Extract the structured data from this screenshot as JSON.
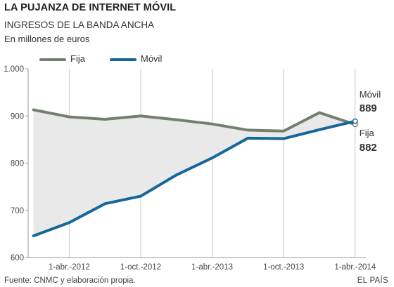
{
  "title": "LA PUJANZA DE INTERNET MÓVIL",
  "subtitle": "INGRESOS DE LA BANDA ANCHA",
  "units": "En millones de euros",
  "source": "Fuente: CNMC y elaboración propia.",
  "brand": "EL PAÍS",
  "colors": {
    "fija": "#74806f",
    "movil": "#15679b",
    "area": "#e9e9e9",
    "grid": "#c9c9c9",
    "axis": "#9a9a9a"
  },
  "chart_data": {
    "type": "line",
    "title": "LA PUJANZA DE INTERNET MÓVIL",
    "subtitle": "INGRESOS DE LA BANDA ANCHA",
    "ylabel": "En millones de euros",
    "xlabel": "",
    "ylim": [
      600,
      1000
    ],
    "yticks": [
      600,
      700,
      800,
      900,
      1000
    ],
    "ytick_labels": [
      "600",
      "700",
      "800",
      "900",
      "1.000"
    ],
    "xticks": [
      1,
      3,
      5,
      7,
      9
    ],
    "xtick_labels": [
      "1-abr.-2012",
      "1-oct.-2012",
      "1-abr.-2013",
      "1-oct.-2013",
      "1-abr.-2014"
    ],
    "xlim": [
      -0.15,
      9.3
    ],
    "x": [
      0,
      1,
      2,
      3,
      4,
      5,
      6,
      7,
      8,
      9
    ],
    "grid": "vertical",
    "legend_position": "top-left",
    "series": [
      {
        "name": "Fija",
        "color": "#74806f",
        "values": [
          913,
          898,
          893,
          900,
          892,
          883,
          870,
          868,
          907,
          882
        ]
      },
      {
        "name": "Móvil",
        "color": "#15679b",
        "values": [
          646,
          674,
          714,
          730,
          775,
          811,
          853,
          852,
          871,
          889
        ]
      }
    ],
    "annotations": [
      {
        "series": "Móvil",
        "label": "Móvil",
        "value": "889"
      },
      {
        "series": "Fija",
        "label": "Fija",
        "value": "882"
      }
    ]
  }
}
